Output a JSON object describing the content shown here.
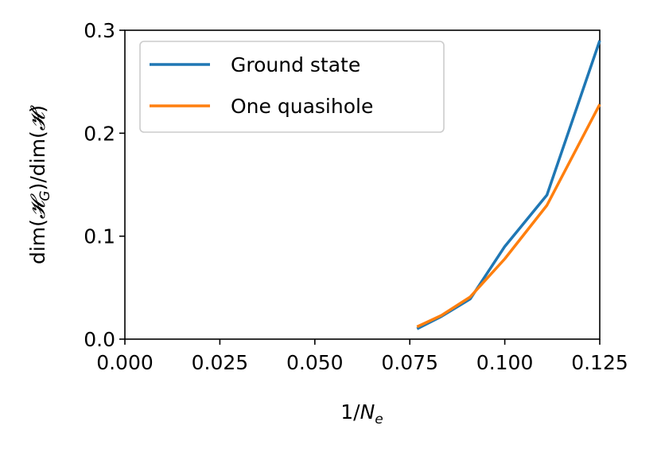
{
  "chart_data": {
    "type": "line",
    "xlabel": "1/N_e",
    "xlabel_parts": {
      "base": "1/",
      "var": "N",
      "sub": "e"
    },
    "ylabel": "dim(𝓗_G)/dim(𝓗)",
    "ylabel_parts": {
      "pre": "dim(",
      "h": "𝓗",
      "sub": "G",
      "post": ")/dim(",
      "h2": "𝓗",
      "end": ")"
    },
    "xlim": [
      0.0,
      0.125
    ],
    "ylim": [
      0.0,
      0.3
    ],
    "xticks": [
      "0.000",
      "0.025",
      "0.050",
      "0.075",
      "0.100",
      "0.125"
    ],
    "yticks": [
      "0.0",
      "0.1",
      "0.2",
      "0.3"
    ],
    "grid": false,
    "legend_position": "top-left",
    "series": [
      {
        "name": "Ground state",
        "color": "#1f77b4",
        "x": [
          0.0769,
          0.0833,
          0.0909,
          0.1,
          0.1111,
          0.125
        ],
        "y": [
          0.01,
          0.022,
          0.039,
          0.09,
          0.14,
          0.29
        ]
      },
      {
        "name": "One quasihole",
        "color": "#ff7f0e",
        "x": [
          0.0769,
          0.0833,
          0.0909,
          0.1,
          0.1111,
          0.125
        ],
        "y": [
          0.012,
          0.023,
          0.041,
          0.078,
          0.13,
          0.228
        ]
      }
    ]
  }
}
